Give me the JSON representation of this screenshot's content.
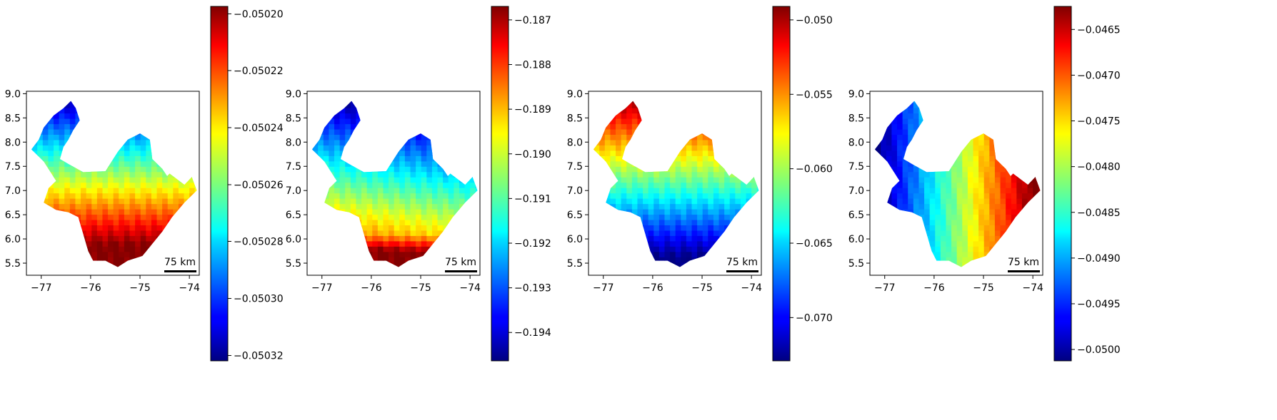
{
  "panels": [
    {
      "name": "panel-1",
      "map_color_anchors": [
        0.0,
        0.98
      ],
      "colorbar": {
        "colormap": "jet",
        "ticks": [
          "−0.05020",
          "−0.05022",
          "−0.05024",
          "−0.05026",
          "−0.05028",
          "−0.05030",
          "−0.05032"
        ],
        "tick_positions": [
          0.979,
          0.819,
          0.658,
          0.497,
          0.337,
          0.176,
          0.015
        ]
      }
    },
    {
      "name": "panel-2",
      "map_color_anchors": [
        0.0,
        0.99
      ],
      "colorbar": {
        "colormap": "jet",
        "ticks": [
          "−0.187",
          "−0.188",
          "−0.189",
          "−0.190",
          "−0.191",
          "−0.192",
          "−0.193",
          "−0.194"
        ],
        "tick_positions": [
          0.962,
          0.836,
          0.71,
          0.584,
          0.458,
          0.332,
          0.206,
          0.08
        ]
      }
    },
    {
      "name": "panel-3",
      "map_color_anchors": [
        0.98,
        0.0
      ],
      "colorbar": {
        "colormap": "jet",
        "ticks": [
          "−0.050",
          "−0.055",
          "−0.060",
          "−0.065",
          "−0.070"
        ],
        "tick_positions": [
          0.962,
          0.752,
          0.542,
          0.332,
          0.122
        ]
      }
    },
    {
      "name": "panel-4",
      "map_color_anchors": [
        0.0,
        0.99
      ],
      "colorbar": {
        "colormap": "jet",
        "ticks": [
          "−0.0465",
          "−0.0470",
          "−0.0475",
          "−0.0480",
          "−0.0485",
          "−0.0490",
          "−0.0495",
          "−0.0500"
        ],
        "tick_positions": [
          0.935,
          0.806,
          0.677,
          0.548,
          0.419,
          0.29,
          0.161,
          0.032
        ]
      }
    }
  ],
  "map_axes": {
    "x_ticks": [
      "−77",
      "−76",
      "−75",
      "−74"
    ],
    "y_ticks": [
      "5.5",
      "6.0",
      "6.5",
      "7.0",
      "7.5",
      "8.0",
      "8.5",
      "9.0"
    ],
    "xlim": [
      -77.3,
      -73.8
    ],
    "ylim": [
      5.25,
      9.05
    ]
  },
  "scale_bar": {
    "label": "75 km"
  },
  "colors": {
    "frame": "#000000",
    "background": "#ffffff"
  }
}
